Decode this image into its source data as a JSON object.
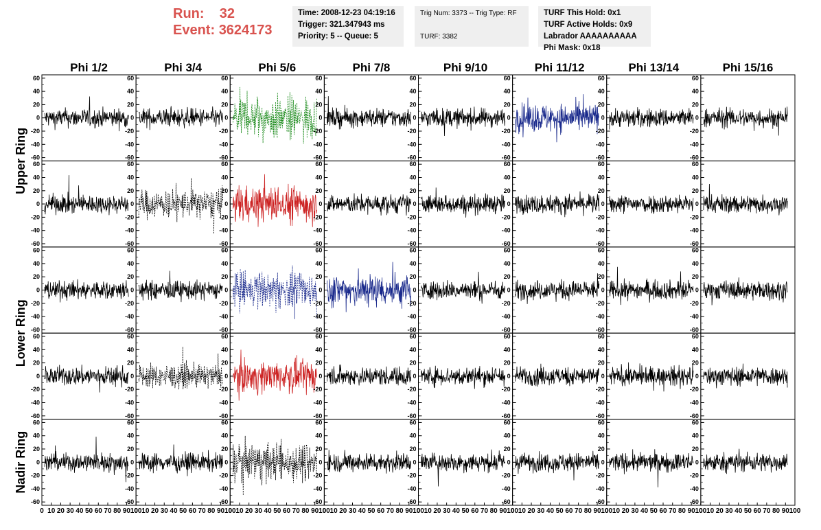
{
  "header": {
    "run_label": "Run:",
    "run_value": "32",
    "event_label": "Event:",
    "event_value": "3624173"
  },
  "info1": {
    "time": "Time: 2008-12-23 04:19:16",
    "trigger": "Trigger: 321.347943 ms",
    "priority": "Priority: 5 -- Queue: 5"
  },
  "info2": {
    "trig": "Trig Num: 3373 -- Trig Type: RF",
    "turf": "TURF: 3382"
  },
  "info3": {
    "hold": "TURF This Hold: 0x1",
    "active": "TURF Active Holds: 0x9",
    "labrador": "Labrador AAAAAAAAAA",
    "phimask": "Phi Mask: 0x18"
  },
  "chart_data": {
    "type": "line",
    "columns": [
      "Phi 1/2",
      "Phi 3/4",
      "Phi 5/6",
      "Phi 7/8",
      "Phi 9/10",
      "Phi 11/12",
      "Phi 13/14",
      "Phi 15/16"
    ],
    "ring_labels": [
      "Upper Ring",
      "Lower Ring",
      "Nadir Ring"
    ],
    "rows": 5,
    "y_ticks": [
      -60,
      -40,
      -20,
      0,
      20,
      40,
      60
    ],
    "y_tick_labels": [
      "-60",
      "-40",
      "-20",
      "0",
      "20",
      "40",
      "60"
    ],
    "ylim": [
      -65,
      65
    ],
    "x_tick_labels": [
      "0",
      "10",
      "20",
      "30",
      "40",
      "50",
      "60",
      "70",
      "80",
      "90",
      "100"
    ],
    "xlim": [
      0,
      100
    ],
    "trace_colors": {
      "black": "#000000",
      "green": "#1a8a1a",
      "red": "#cc2222",
      "blue": "#1a2a8c"
    },
    "highlighted_traces": [
      {
        "row": 0,
        "col": 2,
        "color": "green",
        "dashed": true,
        "amplitude": 50
      },
      {
        "row": 0,
        "col": 5,
        "color": "blue",
        "dashed": false,
        "amplitude": 30
      },
      {
        "row": 1,
        "col": 1,
        "color": "black",
        "dashed": true,
        "amplitude": 30
      },
      {
        "row": 1,
        "col": 2,
        "color": "red",
        "dashed": false,
        "amplitude": 45
      },
      {
        "row": 2,
        "col": 2,
        "color": "blue",
        "dashed": true,
        "amplitude": 45
      },
      {
        "row": 2,
        "col": 3,
        "color": "blue",
        "dashed": false,
        "amplitude": 35
      },
      {
        "row": 3,
        "col": 1,
        "color": "black",
        "dashed": true,
        "amplitude": 25
      },
      {
        "row": 3,
        "col": 2,
        "color": "red",
        "dashed": false,
        "amplitude": 40
      },
      {
        "row": 4,
        "col": 2,
        "color": "black",
        "dashed": true,
        "amplitude": 40
      }
    ],
    "default_amplitude": 20,
    "samples_per_trace": 260
  }
}
